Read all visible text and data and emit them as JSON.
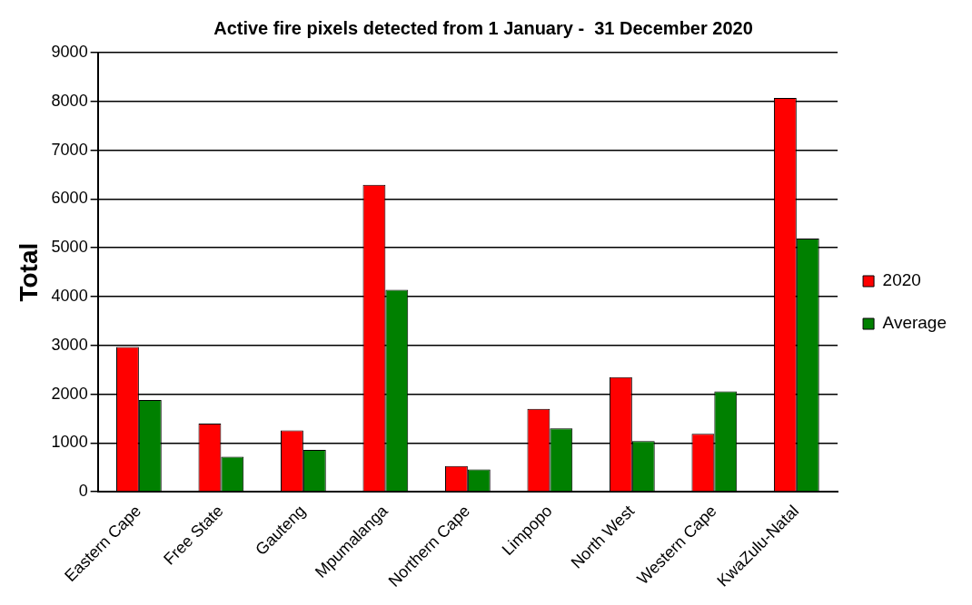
{
  "chart_data": {
    "type": "bar",
    "title": "Active fire pixels detected from 1 January -  31 December 2020",
    "ylabel": "Total",
    "categories": [
      "Eastern Cape",
      "Free State",
      "Gauteng",
      "Mpumalanga",
      "Northern Cape",
      "Limpopo",
      "North West",
      "Western Cape",
      "KwaZulu-Natal"
    ],
    "series": [
      {
        "name": "2020",
        "color": "#ff0000",
        "values": [
          2970,
          1400,
          1260,
          6290,
          530,
          1700,
          2350,
          1190,
          8070
        ]
      },
      {
        "name": "Average",
        "color": "#008000",
        "values": [
          1880,
          720,
          860,
          4140,
          460,
          1300,
          1040,
          2060,
          5190
        ]
      }
    ],
    "ylim": [
      0,
      9000
    ],
    "yticks": [
      0,
      1000,
      2000,
      3000,
      4000,
      5000,
      6000,
      7000,
      8000,
      9000
    ],
    "grid": "y",
    "legend": "right"
  }
}
